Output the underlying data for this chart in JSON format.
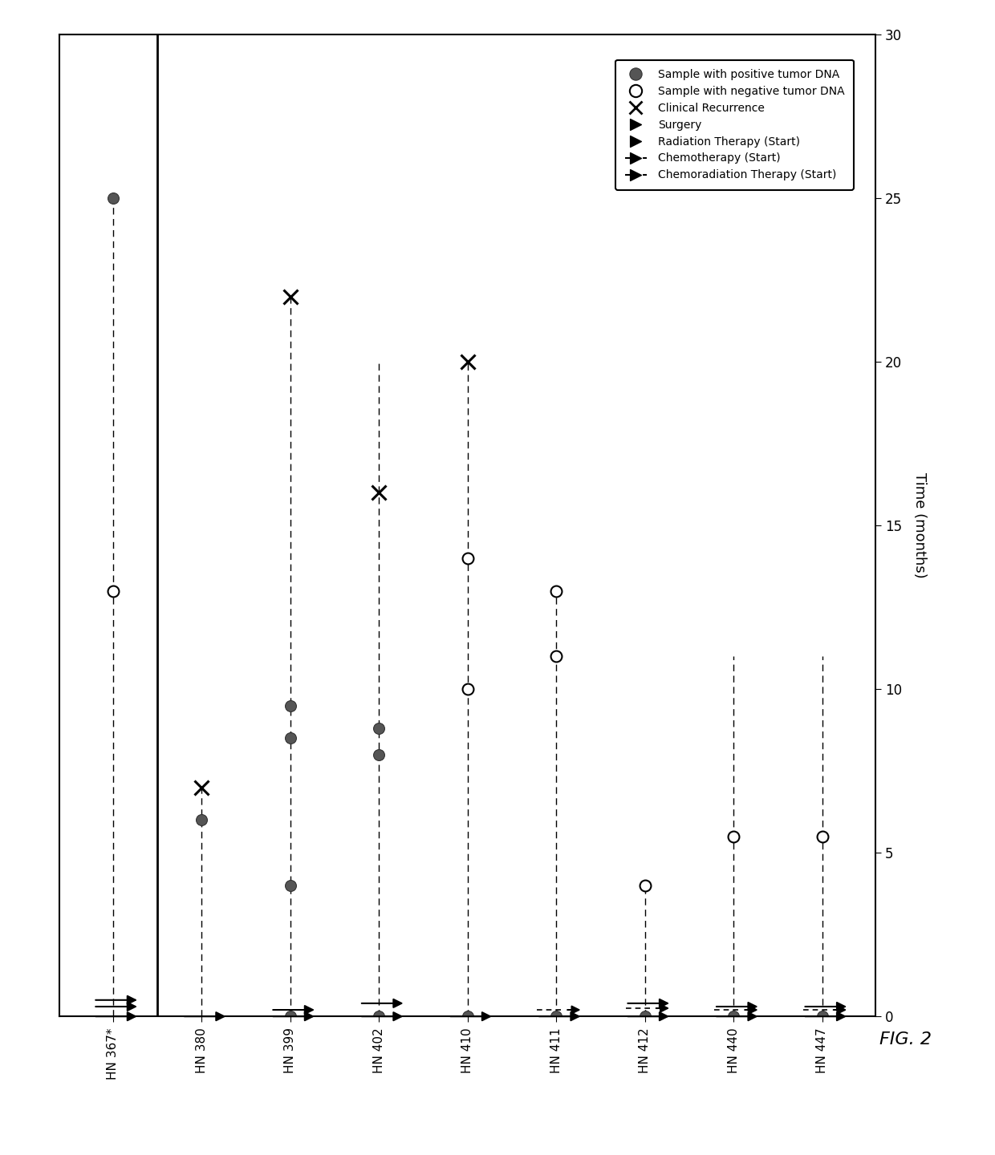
{
  "patients": [
    "HN 367*",
    "HN 380",
    "HN 399",
    "HN 402",
    "HN 410",
    "HN 411",
    "HN 412",
    "HN 440",
    "HN 447"
  ],
  "ylim": [
    0,
    30
  ],
  "yticks": [
    0,
    5,
    10,
    15,
    20,
    25,
    30
  ],
  "ylabel": "Time (months)",
  "title": "FIG. 2",
  "separator_after": 0,
  "positive_pts": {
    "HN 367*": [
      25
    ],
    "HN 380": [
      6
    ],
    "HN 399": [
      0,
      4,
      8.5,
      9.5
    ],
    "HN 402": [
      0,
      8,
      8.8
    ],
    "HN 410": [
      0
    ],
    "HN 411": [
      0
    ],
    "HN 412": [
      0
    ],
    "HN 440": [
      0
    ],
    "HN 447": [
      0
    ]
  },
  "negative_pts": {
    "HN 367*": [
      13
    ],
    "HN 380": [],
    "HN 399": [],
    "HN 402": [],
    "HN 410": [
      10,
      14
    ],
    "HN 411": [
      11,
      13
    ],
    "HN 412": [
      4
    ],
    "HN 440": [
      5.5
    ],
    "HN 447": [
      5.5
    ]
  },
  "clinical_recurrence": {
    "HN 380": 7,
    "HN 399": 22,
    "HN 402": 16,
    "HN 410": 20
  },
  "dashed_line_ends": {
    "HN 367*": 25,
    "HN 380": 7,
    "HN 399": 22,
    "HN 402": 20,
    "HN 410": 20,
    "HN 411": 13,
    "HN 412": 4,
    "HN 440": 11,
    "HN 447": 11
  },
  "surgery_times": {
    "HN 367*": [
      0,
      0.5
    ],
    "HN 380": [
      0
    ],
    "HN 399": [
      0
    ],
    "HN 402": [
      0,
      0.4
    ],
    "HN 410": [
      0
    ],
    "HN 411": [
      0
    ],
    "HN 412": [
      0,
      0.4
    ],
    "HN 440": [
      0,
      0.3
    ],
    "HN 447": [
      0,
      0.3
    ]
  },
  "radiation_times": {
    "HN 367*": [
      0.3
    ],
    "HN 399": [
      0.2
    ]
  },
  "chemo_times": {},
  "chemorad_times": {
    "HN 411": [
      0.2
    ],
    "HN 412": [
      0.25
    ],
    "HN 440": [
      0.2
    ],
    "HN 447": [
      0.2
    ]
  },
  "legend_items": [
    "Sample with positive tumor DNA",
    "Sample with negative tumor DNA",
    "Clinical Recurrence",
    "Surgery",
    "Radiation Therapy (Start)",
    "Chemotherapy (Start)",
    "Chemoradiation Therapy (Start)"
  ]
}
